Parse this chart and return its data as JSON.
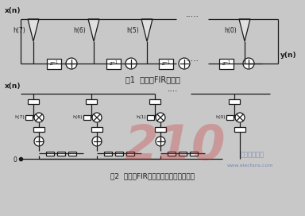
{
  "bg_color": "#c8c8c8",
  "line_color": "#1a1a1a",
  "title1": "图1  转置型FIR滤波器",
  "title2": "图2  转置型FIR滤波器硬件逻辑基本单元",
  "fig1_h_labels": [
    "h(7)",
    "h(6)",
    "h(5)",
    "h(0)"
  ],
  "fig1_x_label": "x(n)",
  "fig1_y_label": "y(n)",
  "fig2_h_labels": [
    "h(7)",
    "h(6)",
    "h(1)",
    "h(0)"
  ],
  "fig2_x_label": "x(n)",
  "dots_top": ".....",
  "dots_mid": ".....",
  "dots2_top": "....",
  "dots2_mid": "....",
  "watermark_text": "210",
  "watermark_color": "#cc2222",
  "watermark_alpha": 0.28,
  "site_text": "www.elecfans.com",
  "site_color": "#3355aa",
  "cn_text": "电子发烧友网",
  "font_size": 6.5
}
